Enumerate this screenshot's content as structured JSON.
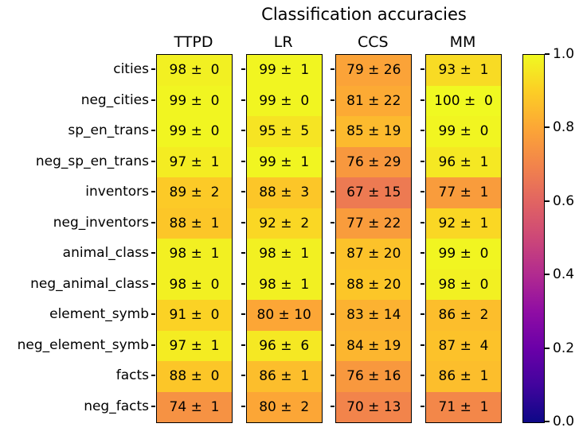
{
  "figure": {
    "title": "Classification accuracies"
  },
  "chart_data": {
    "type": "heatmap",
    "title": "Classification accuracies",
    "columns": [
      "TTPD",
      "LR",
      "CCS",
      "MM"
    ],
    "rows": [
      "cities",
      "neg_cities",
      "sp_en_trans",
      "neg_sp_en_trans",
      "inventors",
      "neg_inventors",
      "animal_class",
      "neg_animal_class",
      "element_symb",
      "neg_element_symb",
      "facts",
      "neg_facts"
    ],
    "series": [
      {
        "name": "TTPD",
        "means": [
          98,
          99,
          99,
          97,
          89,
          88,
          98,
          98,
          91,
          97,
          88,
          74
        ],
        "stds": [
          0,
          0,
          0,
          1,
          2,
          1,
          1,
          0,
          0,
          1,
          0,
          1
        ]
      },
      {
        "name": "LR",
        "means": [
          99,
          99,
          95,
          99,
          88,
          92,
          98,
          98,
          80,
          96,
          86,
          80
        ],
        "stds": [
          1,
          0,
          5,
          1,
          3,
          2,
          1,
          1,
          10,
          6,
          1,
          2
        ]
      },
      {
        "name": "CCS",
        "means": [
          79,
          81,
          85,
          76,
          67,
          77,
          87,
          88,
          83,
          84,
          76,
          70
        ],
        "stds": [
          26,
          22,
          19,
          29,
          15,
          22,
          20,
          20,
          14,
          19,
          16,
          13
        ]
      },
      {
        "name": "MM",
        "means": [
          93,
          100,
          99,
          96,
          77,
          92,
          99,
          98,
          86,
          87,
          86,
          71
        ],
        "stds": [
          1,
          0,
          0,
          1,
          1,
          1,
          0,
          0,
          2,
          4,
          1,
          1
        ]
      }
    ],
    "cell_label_format": "{mean} ± {std}",
    "value_to_color_scale": 100,
    "colorbar": {
      "min": 0.0,
      "max": 1.0,
      "tick_values": [
        1.0,
        0.8,
        0.6,
        0.4,
        0.2,
        0.0
      ]
    },
    "colormap": {
      "name": "plasma",
      "stops": [
        "#0d0887",
        "#41049d",
        "#6a00a8",
        "#8f0da4",
        "#b12a90",
        "#cc4778",
        "#e16462",
        "#f2844b",
        "#fca636",
        "#fcce25",
        "#f0f921"
      ]
    },
    "grid": false,
    "legend": "colorbar-right"
  }
}
